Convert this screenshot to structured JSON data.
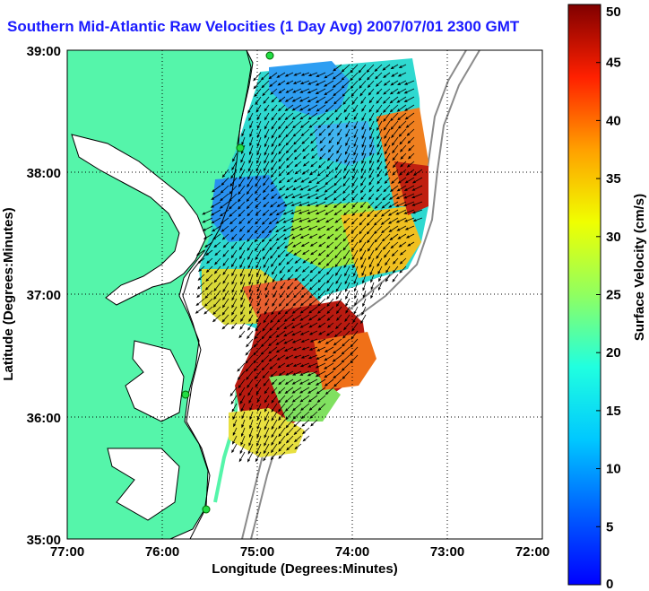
{
  "title": "Southern Mid-Atlantic Raw Velocities (1 Day Avg) 2007/07/01 2300 GMT",
  "map": {
    "xlabel": "Longitude (Degrees:Minutes)",
    "ylabel": "Latitude (Degrees:Minutes)",
    "x_ticks": [
      "77:00",
      "76:00",
      "75:00",
      "74:00",
      "73:00",
      "72:00"
    ],
    "y_ticks": [
      "39:00",
      "38:00",
      "37:00",
      "36:00",
      "35:00"
    ],
    "land_color": "#55f5aa",
    "grid": "dotted"
  },
  "colorbar": {
    "label": "Surface Velocity (cm/s)",
    "min": 0,
    "max": 50,
    "ticks": [
      "0",
      "5",
      "10",
      "15",
      "20",
      "25",
      "30",
      "35",
      "40",
      "45",
      "50"
    ],
    "colormap": "jet"
  }
}
